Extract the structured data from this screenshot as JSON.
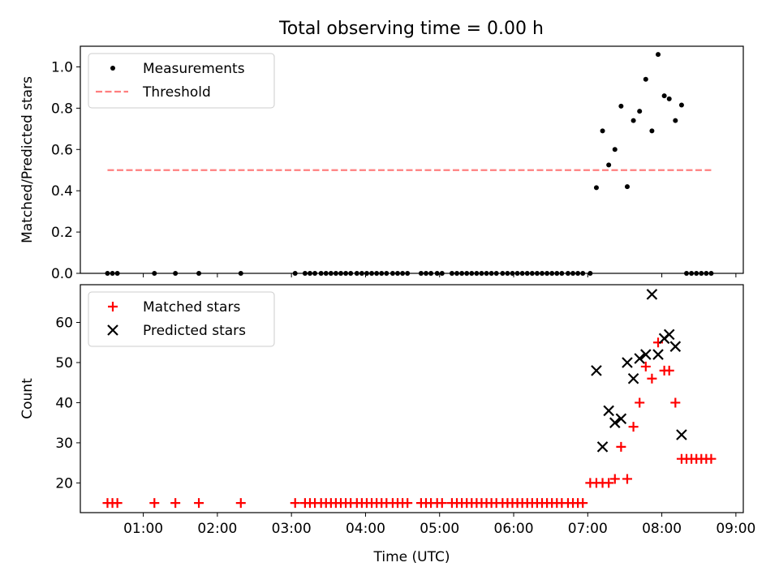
{
  "figure_title": "Total observing time = 0.00 h",
  "chart_data": [
    {
      "type": "scatter",
      "panel": "top",
      "ylabel": "Matched/Predicted stars",
      "xlabel": "",
      "ylim": [
        0,
        1.1
      ],
      "xlim": [
        "00:09",
        "09:06"
      ],
      "x_ticks": [
        "01:00",
        "02:00",
        "03:00",
        "04:00",
        "05:00",
        "06:00",
        "07:00",
        "08:00",
        "09:00"
      ],
      "y_ticks": [
        "0.0",
        "0.2",
        "0.4",
        "0.6",
        "0.8",
        "1.0"
      ],
      "legend_position": "upper-left",
      "grid": false,
      "series": [
        {
          "name": "Measurements",
          "marker": "dot",
          "color": "#000000",
          "points": [
            [
              "00:31",
              0
            ],
            [
              "00:35",
              0
            ],
            [
              "00:39",
              0
            ],
            [
              "01:09",
              0
            ],
            [
              "01:26",
              0
            ],
            [
              "01:45",
              0
            ],
            [
              "02:19",
              0
            ],
            [
              "03:03",
              0
            ],
            [
              "03:11",
              0
            ],
            [
              "03:15",
              0
            ],
            [
              "03:19",
              0
            ],
            [
              "03:24",
              0
            ],
            [
              "03:28",
              0
            ],
            [
              "03:32",
              0
            ],
            [
              "03:36",
              0
            ],
            [
              "03:40",
              0
            ],
            [
              "03:44",
              0
            ],
            [
              "03:48",
              0
            ],
            [
              "03:53",
              0
            ],
            [
              "03:57",
              0
            ],
            [
              "04:01",
              0
            ],
            [
              "04:05",
              0
            ],
            [
              "04:09",
              0
            ],
            [
              "04:13",
              0
            ],
            [
              "04:17",
              0
            ],
            [
              "04:22",
              0
            ],
            [
              "04:26",
              0
            ],
            [
              "04:30",
              0
            ],
            [
              "04:34",
              0
            ],
            [
              "04:45",
              0
            ],
            [
              "04:49",
              0
            ],
            [
              "04:53",
              0
            ],
            [
              "04:58",
              0
            ],
            [
              "05:02",
              0
            ],
            [
              "05:10",
              0
            ],
            [
              "05:14",
              0
            ],
            [
              "05:18",
              0
            ],
            [
              "05:22",
              0
            ],
            [
              "05:26",
              0
            ],
            [
              "05:30",
              0
            ],
            [
              "05:34",
              0
            ],
            [
              "05:38",
              0
            ],
            [
              "05:42",
              0
            ],
            [
              "05:46",
              0
            ],
            [
              "05:51",
              0
            ],
            [
              "05:55",
              0
            ],
            [
              "05:59",
              0
            ],
            [
              "06:03",
              0
            ],
            [
              "06:07",
              0
            ],
            [
              "06:11",
              0
            ],
            [
              "06:15",
              0
            ],
            [
              "06:19",
              0
            ],
            [
              "06:23",
              0
            ],
            [
              "06:27",
              0
            ],
            [
              "06:31",
              0
            ],
            [
              "06:35",
              0
            ],
            [
              "06:39",
              0
            ],
            [
              "06:44",
              0
            ],
            [
              "06:48",
              0
            ],
            [
              "06:52",
              0
            ],
            [
              "06:56",
              0
            ],
            [
              "07:02",
              0
            ],
            [
              "07:07",
              0.415
            ],
            [
              "07:12",
              0.69
            ],
            [
              "07:17",
              0.525
            ],
            [
              "07:22",
              0.6
            ],
            [
              "07:27",
              0.81
            ],
            [
              "07:32",
              0.42
            ],
            [
              "07:37",
              0.74
            ],
            [
              "07:42",
              0.785
            ],
            [
              "07:47",
              0.94
            ],
            [
              "07:52",
              0.69
            ],
            [
              "07:57",
              1.06
            ],
            [
              "08:02",
              0.86
            ],
            [
              "08:06",
              0.845
            ],
            [
              "08:11",
              0.74
            ],
            [
              "08:16",
              0.815
            ],
            [
              "08:20",
              0
            ],
            [
              "08:24",
              0
            ],
            [
              "08:28",
              0
            ],
            [
              "08:32",
              0
            ],
            [
              "08:36",
              0
            ],
            [
              "08:40",
              0
            ]
          ]
        },
        {
          "name": "Threshold",
          "marker": "dashed-line",
          "color": "#ff7f7f",
          "points": [
            [
              "00:31",
              0.5
            ],
            [
              "08:40",
              0.5
            ]
          ]
        }
      ]
    },
    {
      "type": "scatter",
      "panel": "bottom",
      "ylabel": "Count",
      "xlabel": "Time (UTC)",
      "ylim": [
        12.6,
        69.4
      ],
      "xlim": [
        "00:09",
        "09:06"
      ],
      "x_ticks": [
        "01:00",
        "02:00",
        "03:00",
        "04:00",
        "05:00",
        "06:00",
        "07:00",
        "08:00",
        "09:00"
      ],
      "y_ticks": [
        "20",
        "30",
        "40",
        "50",
        "60"
      ],
      "legend_position": "upper-left",
      "grid": false,
      "series": [
        {
          "name": "Matched stars",
          "marker": "plus",
          "color": "#ff0000",
          "points": [
            [
              "00:31",
              15
            ],
            [
              "00:35",
              15
            ],
            [
              "00:39",
              15
            ],
            [
              "01:09",
              15
            ],
            [
              "01:26",
              15
            ],
            [
              "01:45",
              15
            ],
            [
              "02:19",
              15
            ],
            [
              "03:03",
              15
            ],
            [
              "03:11",
              15
            ],
            [
              "03:15",
              15
            ],
            [
              "03:19",
              15
            ],
            [
              "03:24",
              15
            ],
            [
              "03:28",
              15
            ],
            [
              "03:32",
              15
            ],
            [
              "03:36",
              15
            ],
            [
              "03:40",
              15
            ],
            [
              "03:44",
              15
            ],
            [
              "03:48",
              15
            ],
            [
              "03:53",
              15
            ],
            [
              "03:57",
              15
            ],
            [
              "04:01",
              15
            ],
            [
              "04:05",
              15
            ],
            [
              "04:09",
              15
            ],
            [
              "04:13",
              15
            ],
            [
              "04:17",
              15
            ],
            [
              "04:22",
              15
            ],
            [
              "04:26",
              15
            ],
            [
              "04:30",
              15
            ],
            [
              "04:34",
              15
            ],
            [
              "04:45",
              15
            ],
            [
              "04:49",
              15
            ],
            [
              "04:53",
              15
            ],
            [
              "04:58",
              15
            ],
            [
              "05:02",
              15
            ],
            [
              "05:10",
              15
            ],
            [
              "05:14",
              15
            ],
            [
              "05:18",
              15
            ],
            [
              "05:22",
              15
            ],
            [
              "05:26",
              15
            ],
            [
              "05:30",
              15
            ],
            [
              "05:34",
              15
            ],
            [
              "05:38",
              15
            ],
            [
              "05:42",
              15
            ],
            [
              "05:46",
              15
            ],
            [
              "05:51",
              15
            ],
            [
              "05:55",
              15
            ],
            [
              "05:59",
              15
            ],
            [
              "06:03",
              15
            ],
            [
              "06:07",
              15
            ],
            [
              "06:11",
              15
            ],
            [
              "06:15",
              15
            ],
            [
              "06:19",
              15
            ],
            [
              "06:23",
              15
            ],
            [
              "06:27",
              15
            ],
            [
              "06:31",
              15
            ],
            [
              "06:35",
              15
            ],
            [
              "06:39",
              15
            ],
            [
              "06:44",
              15
            ],
            [
              "06:48",
              15
            ],
            [
              "06:52",
              15
            ],
            [
              "06:56",
              15
            ],
            [
              "07:02",
              20
            ],
            [
              "07:07",
              20
            ],
            [
              "07:12",
              20
            ],
            [
              "07:17",
              20
            ],
            [
              "07:22",
              21
            ],
            [
              "07:27",
              29
            ],
            [
              "07:32",
              21
            ],
            [
              "07:37",
              34
            ],
            [
              "07:42",
              40
            ],
            [
              "07:47",
              49
            ],
            [
              "07:52",
              46
            ],
            [
              "07:57",
              55
            ],
            [
              "08:02",
              48
            ],
            [
              "08:06",
              48
            ],
            [
              "08:11",
              40
            ],
            [
              "08:16",
              26
            ],
            [
              "08:20",
              26
            ],
            [
              "08:24",
              26
            ],
            [
              "08:28",
              26
            ],
            [
              "08:32",
              26
            ],
            [
              "08:36",
              26
            ],
            [
              "08:40",
              26
            ]
          ]
        },
        {
          "name": "Predicted stars",
          "marker": "x",
          "color": "#000000",
          "points": [
            [
              "07:07",
              48
            ],
            [
              "07:12",
              29
            ],
            [
              "07:17",
              38
            ],
            [
              "07:22",
              35
            ],
            [
              "07:27",
              36
            ],
            [
              "07:32",
              50
            ],
            [
              "07:37",
              46
            ],
            [
              "07:42",
              51
            ],
            [
              "07:47",
              52
            ],
            [
              "07:52",
              67
            ],
            [
              "07:57",
              52
            ],
            [
              "08:02",
              56
            ],
            [
              "08:06",
              57
            ],
            [
              "08:11",
              54
            ],
            [
              "08:16",
              32
            ]
          ]
        }
      ]
    }
  ]
}
